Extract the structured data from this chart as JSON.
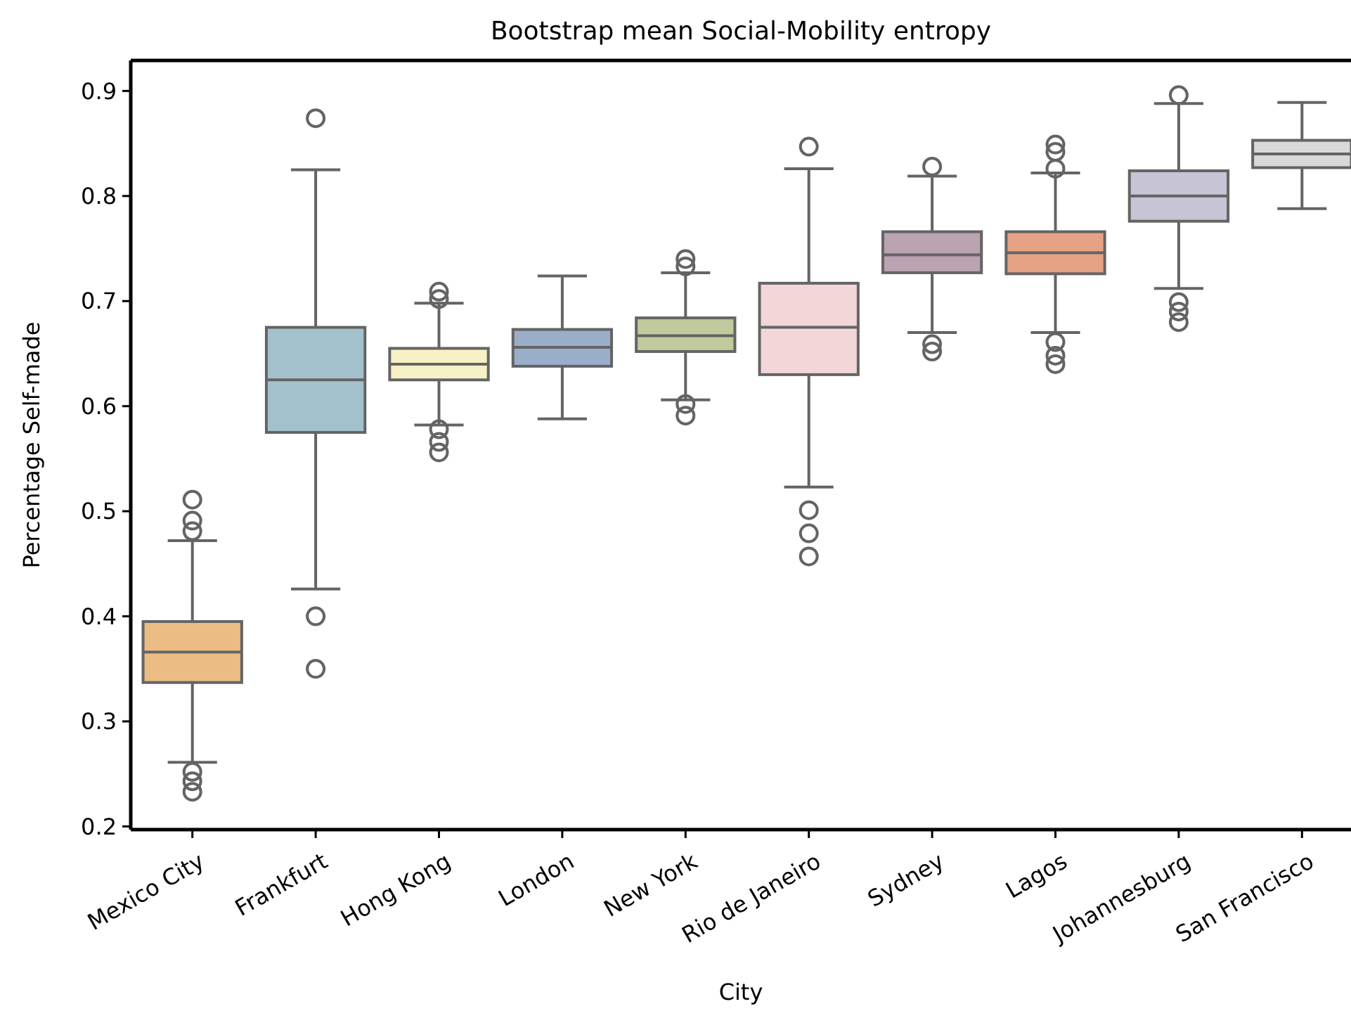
{
  "chart_data": {
    "type": "box",
    "title": "Bootstrap mean Social-Mobility entropy",
    "xlabel": "City",
    "ylabel": "Percentage Self-made",
    "categories": [
      "Mexico City",
      "Frankfurt",
      "Hong Kong",
      "London",
      "New York",
      "Rio de Janeiro",
      "Sydney",
      "Lagos",
      "Johannesburg",
      "San Francisco"
    ],
    "colors": [
      "#ebbd85",
      "#a3c1cc",
      "#f7f1c6",
      "#99afc9",
      "#bfcb9c",
      "#f2d6d8",
      "#bba3b2",
      "#e6a285",
      "#c6c4d5",
      "#d9d9d9"
    ],
    "boxes": [
      {
        "low": 0.261,
        "q1": 0.337,
        "median": 0.366,
        "q3": 0.395,
        "high": 0.472,
        "outliers": [
          0.511,
          0.491,
          0.481,
          0.252,
          0.243,
          0.233
        ]
      },
      {
        "low": 0.426,
        "q1": 0.575,
        "median": 0.625,
        "q3": 0.675,
        "high": 0.825,
        "outliers": [
          0.874,
          0.4,
          0.35
        ]
      },
      {
        "low": 0.582,
        "q1": 0.625,
        "median": 0.64,
        "q3": 0.655,
        "high": 0.698,
        "outliers": [
          0.709,
          0.702,
          0.578,
          0.566,
          0.556
        ]
      },
      {
        "low": 0.588,
        "q1": 0.638,
        "median": 0.656,
        "q3": 0.673,
        "high": 0.724
      },
      {
        "low": 0.606,
        "q1": 0.652,
        "median": 0.667,
        "q3": 0.684,
        "high": 0.727,
        "outliers": [
          0.74,
          0.733,
          0.602,
          0.591
        ]
      },
      {
        "low": 0.523,
        "q1": 0.63,
        "median": 0.675,
        "q3": 0.717,
        "high": 0.826,
        "outliers": [
          0.847,
          0.501,
          0.479,
          0.457
        ]
      },
      {
        "low": 0.67,
        "q1": 0.727,
        "median": 0.744,
        "q3": 0.766,
        "high": 0.819,
        "outliers": [
          0.828,
          0.659,
          0.652
        ]
      },
      {
        "low": 0.67,
        "q1": 0.726,
        "median": 0.746,
        "q3": 0.766,
        "high": 0.822,
        "outliers": [
          0.849,
          0.842,
          0.826,
          0.661,
          0.648,
          0.64
        ]
      },
      {
        "low": 0.712,
        "q1": 0.776,
        "median": 0.8,
        "q3": 0.824,
        "high": 0.888,
        "outliers": [
          0.896,
          0.699,
          0.69,
          0.68
        ]
      },
      {
        "low": 0.788,
        "q1": 0.827,
        "median": 0.84,
        "q3": 0.853,
        "high": 0.889
      }
    ],
    "ylim": [
      0.197,
      0.929
    ],
    "yticks": [
      0.2,
      0.3,
      0.4,
      0.5,
      0.6,
      0.7,
      0.8,
      0.9
    ],
    "grid": false
  }
}
